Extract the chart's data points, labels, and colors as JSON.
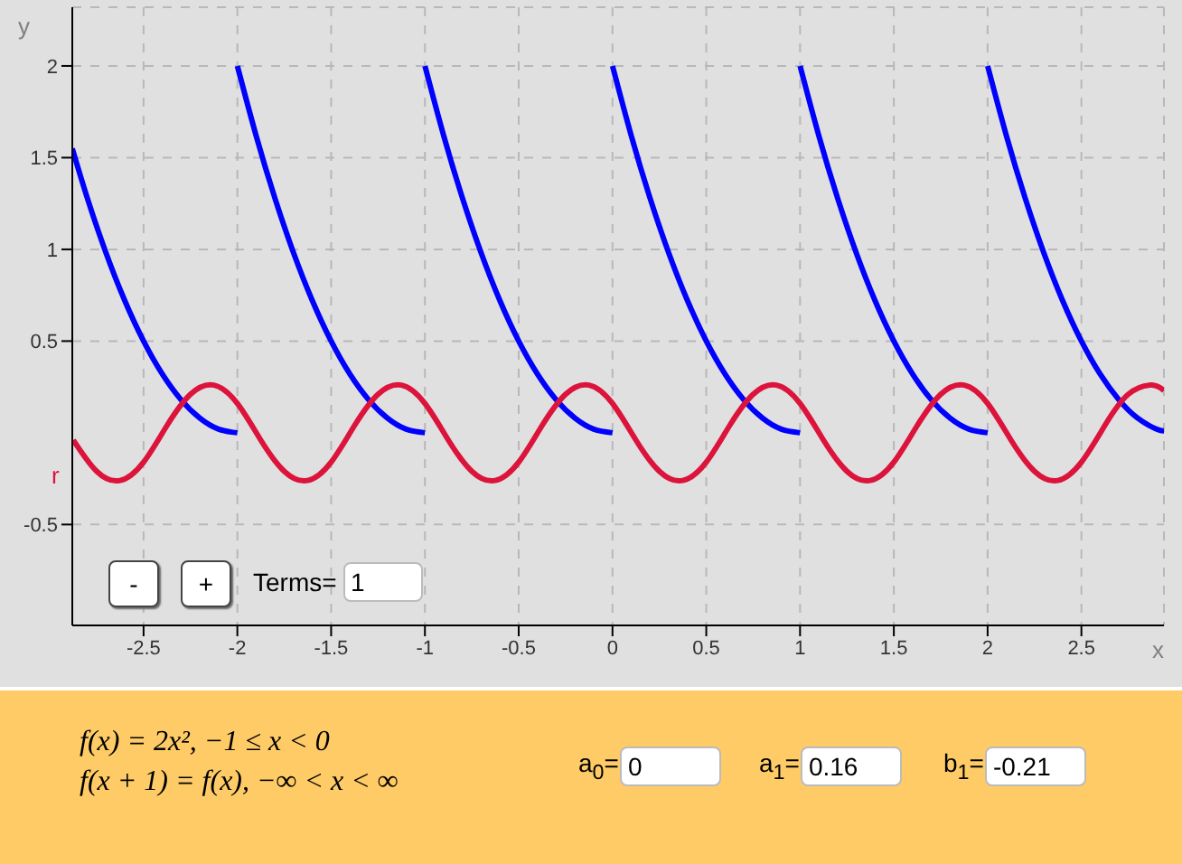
{
  "chart_data": {
    "type": "line",
    "xlabel": "x",
    "ylabel": "y",
    "xlim": [
      -2.88,
      2.94
    ],
    "ylim": [
      -1.05,
      2.32
    ],
    "xticks": [
      -2.5,
      -2,
      -1.5,
      -1,
      -0.5,
      0,
      0.5,
      1,
      1.5,
      2,
      2.5
    ],
    "yticks": [
      -0.5,
      0.5,
      1,
      1.5,
      2
    ],
    "grid": true,
    "series": [
      {
        "color": "#0000ff",
        "x": [
          -2.88,
          -2.8,
          -2.7,
          -2.6,
          -2.5,
          -2.4,
          -2.3,
          -2.2,
          -2.1,
          -2
        ],
        "values": [
          1.55,
          1.28,
          0.98,
          0.72,
          0.5,
          0.32,
          0.18,
          0.08,
          0.02,
          0
        ]
      },
      {
        "color": "#0000ff",
        "x": [
          -2,
          -1.9,
          -1.8,
          -1.7,
          -1.6,
          -1.5,
          -1.4,
          -1.3,
          -1.2,
          -1.1,
          -1
        ],
        "values": [
          2,
          1.62,
          1.28,
          0.98,
          0.72,
          0.5,
          0.32,
          0.18,
          0.08,
          0.02,
          0
        ]
      },
      {
        "color": "#0000ff",
        "x": [
          -1,
          -0.9,
          -0.8,
          -0.7,
          -0.6,
          -0.5,
          -0.4,
          -0.3,
          -0.2,
          -0.1,
          0
        ],
        "values": [
          2,
          1.62,
          1.28,
          0.98,
          0.72,
          0.5,
          0.32,
          0.18,
          0.08,
          0.02,
          0
        ]
      },
      {
        "color": "#0000ff",
        "x": [
          0,
          0.1,
          0.2,
          0.3,
          0.4,
          0.5,
          0.6,
          0.7,
          0.8,
          0.9,
          1
        ],
        "values": [
          2,
          1.62,
          1.28,
          0.98,
          0.72,
          0.5,
          0.32,
          0.18,
          0.08,
          0.02,
          0
        ]
      },
      {
        "color": "#0000ff",
        "x": [
          1,
          1.1,
          1.2,
          1.3,
          1.4,
          1.5,
          1.6,
          1.7,
          1.8,
          1.9,
          2
        ],
        "values": [
          2,
          1.62,
          1.28,
          0.98,
          0.72,
          0.5,
          0.32,
          0.18,
          0.08,
          0.02,
          0
        ]
      },
      {
        "color": "#0000ff",
        "x": [
          2,
          2.1,
          2.2,
          2.3,
          2.4,
          2.5,
          2.6,
          2.7,
          2.8,
          2.9,
          2.94
        ],
        "values": [
          2,
          1.62,
          1.28,
          0.98,
          0.72,
          0.5,
          0.32,
          0.18,
          0.08,
          0.02,
          0.01
        ]
      },
      {
        "name": "r",
        "color": "#dc143c",
        "x": [
          -2.875,
          -2.75,
          -2.625,
          -2.5,
          -2.375,
          -2.25,
          -2.125,
          -2,
          -1.875,
          -1.75,
          -1.625,
          -1.5,
          -1.375,
          -1.25,
          -1.125,
          -1,
          -0.875,
          -0.75,
          -0.625,
          -0.5,
          -0.375,
          -0.25,
          -0.125,
          0,
          0.125,
          0.25,
          0.375,
          0.5,
          0.625,
          0.75,
          0.875,
          1,
          1.125,
          1.25,
          1.375,
          1.5,
          1.625,
          1.75,
          1.875,
          2,
          2.125,
          2.25,
          2.375,
          2.5,
          2.625,
          2.75,
          2.875,
          2.94
        ],
        "values": [
          -0.04,
          -0.21,
          -0.26,
          -0.16,
          0.04,
          0.21,
          0.26,
          0.16,
          -0.04,
          -0.21,
          -0.26,
          -0.16,
          0.04,
          0.21,
          0.26,
          0.16,
          -0.04,
          -0.21,
          -0.26,
          -0.16,
          0.04,
          0.21,
          0.26,
          0.16,
          -0.04,
          -0.21,
          -0.26,
          -0.16,
          0.04,
          0.21,
          0.26,
          0.16,
          -0.04,
          -0.21,
          -0.26,
          -0.16,
          0.04,
          0.21,
          0.26,
          0.16,
          -0.04,
          -0.21,
          -0.26,
          -0.16,
          0.04,
          0.21,
          0.26,
          0.23
        ]
      }
    ],
    "annotations": [
      "f(x) = 2x², −1 ≤ x < 0",
      "f(x + 1) = f(x), −∞ < x < ∞",
      "-",
      "+",
      "Terms=",
      "1",
      "a$_{0}$=",
      "0",
      "a$_{1}$=",
      "0.16",
      "b$_{1}$=",
      "-0.21"
    ]
  }
}
